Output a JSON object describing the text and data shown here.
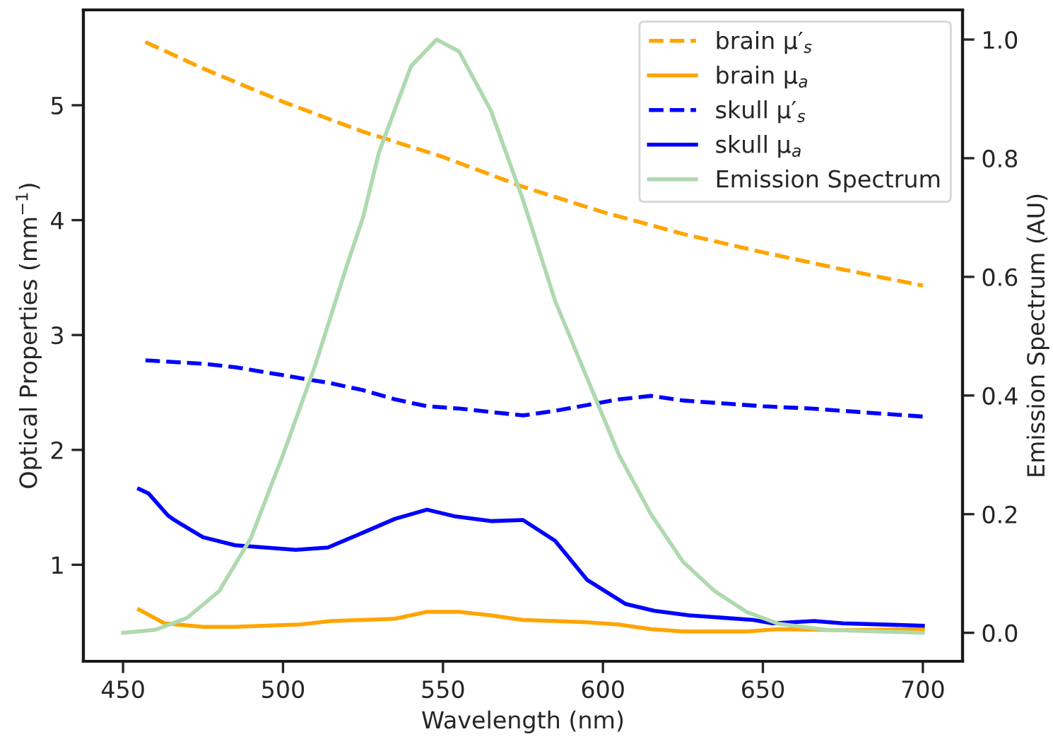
{
  "chart_data": {
    "type": "line",
    "xlabel": "Wavelength (nm)",
    "ylabel": "Optical Properties (mm$^{−1}$)",
    "y2label": "Emission Spectrum (AU)",
    "xlim": [
      437.6,
      712.4
    ],
    "xticks": [
      450,
      500,
      550,
      600,
      650,
      700
    ],
    "ylim": [
      0.16,
      5.83
    ],
    "yticks": [
      1,
      2,
      3,
      4,
      5
    ],
    "y2lim": [
      -0.048,
      1.05
    ],
    "y2ticks": [
      {
        "value": 0,
        "label": "0.0"
      },
      0.2,
      0.4,
      0.6,
      0.8,
      {
        "value": 1,
        "label": "1.0"
      }
    ],
    "grid": false,
    "legend": "top right",
    "marker": "none",
    "series": [
      {
        "name": "brain μ′$_{s}$",
        "color": "#ffa500",
        "line_style": "dashed",
        "x": [
          457,
          475,
          500,
          525,
          550,
          575,
          600,
          625,
          650,
          675,
          700
        ],
        "values": [
          5.55,
          5.32,
          5.03,
          4.77,
          4.55,
          4.29,
          4.07,
          3.88,
          3.72,
          3.57,
          3.43
        ]
      },
      {
        "name": "brain μ$_{a}$",
        "color": "#ffa500",
        "line_style": "solid",
        "x": [
          455,
          463,
          475,
          485,
          495,
          505,
          515,
          525,
          535,
          545,
          555,
          565,
          575,
          585,
          595,
          605,
          615,
          625,
          645,
          655,
          675,
          700
        ],
        "values": [
          0.61,
          0.49,
          0.46,
          0.46,
          0.47,
          0.48,
          0.51,
          0.52,
          0.53,
          0.59,
          0.59,
          0.56,
          0.52,
          0.51,
          0.5,
          0.48,
          0.44,
          0.42,
          0.42,
          0.44,
          0.43,
          0.44
        ]
      },
      {
        "name": "skull μ′$_{s}$",
        "color": "#0000ff",
        "line_style": "dashed",
        "x": [
          457,
          475,
          485,
          500,
          515,
          525,
          535,
          545,
          555,
          565,
          575,
          585,
          595,
          605,
          615,
          625,
          635,
          650,
          665,
          680,
          700
        ],
        "values": [
          2.78,
          2.75,
          2.72,
          2.65,
          2.58,
          2.52,
          2.44,
          2.38,
          2.36,
          2.33,
          2.3,
          2.34,
          2.39,
          2.44,
          2.47,
          2.43,
          2.41,
          2.38,
          2.36,
          2.33,
          2.29
        ]
      },
      {
        "name": "skull μ$_{a}$",
        "color": "#0000ff",
        "line_style": "solid",
        "x": [
          455,
          458,
          464,
          466,
          475,
          485,
          504,
          514,
          525,
          535,
          545,
          554,
          565,
          575,
          585,
          595,
          607,
          616,
          627,
          647,
          653,
          666,
          675,
          700
        ],
        "values": [
          1.66,
          1.62,
          1.43,
          1.39,
          1.24,
          1.17,
          1.13,
          1.15,
          1.28,
          1.4,
          1.48,
          1.42,
          1.38,
          1.39,
          1.21,
          0.87,
          0.66,
          0.6,
          0.56,
          0.52,
          0.49,
          0.51,
          0.49,
          0.47
        ]
      },
      {
        "name": "Emission Spectrum",
        "color": "#afd9af",
        "line_style": "solid",
        "axis": "y2",
        "x": [
          450,
          460,
          470,
          480,
          490,
          500,
          510,
          520,
          525,
          530,
          540,
          548,
          555,
          565,
          575,
          585,
          595,
          605,
          615,
          625,
          635,
          645,
          655,
          670,
          700
        ],
        "values": [
          0.0,
          0.005,
          0.025,
          0.07,
          0.16,
          0.3,
          0.45,
          0.62,
          0.7,
          0.81,
          0.955,
          1.0,
          0.98,
          0.88,
          0.73,
          0.56,
          0.43,
          0.3,
          0.2,
          0.12,
          0.07,
          0.035,
          0.015,
          0.005,
          0.0
        ]
      }
    ]
  }
}
